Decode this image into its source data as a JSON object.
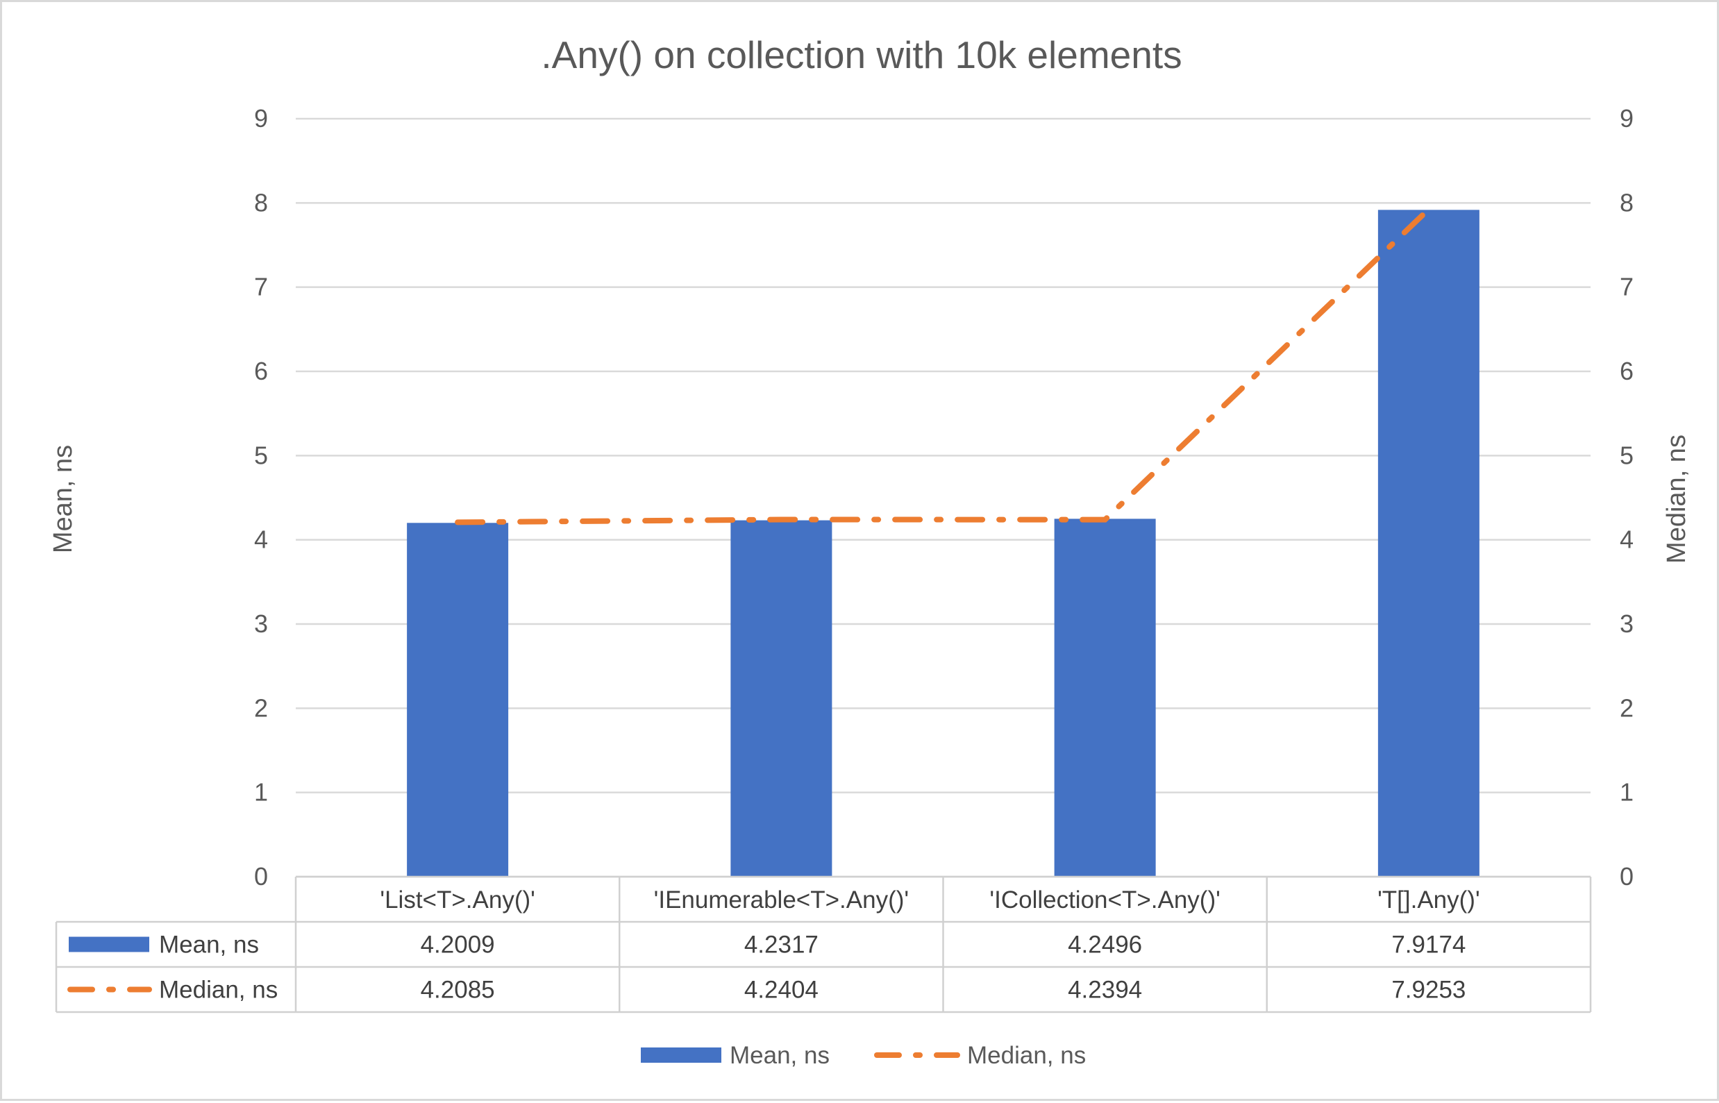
{
  "chart_data": {
    "type": "bar",
    "title": ".Any() on collection with 10k elements",
    "categories": [
      "'List<T>.Any()'",
      "'IEnumerable<T>.Any()'",
      "'ICollection<T>.Any()'",
      "'T[].Any()'"
    ],
    "series": [
      {
        "name": "Mean, ns",
        "type": "bar",
        "axis": "left",
        "color": "#4472c4",
        "values": [
          4.2009,
          4.2317,
          4.2496,
          7.9174
        ],
        "value_labels": [
          "4.2009",
          "4.2317",
          "4.2496",
          "7.9174"
        ]
      },
      {
        "name": "Median, ns",
        "type": "line",
        "line_style": "dash-dot",
        "axis": "right",
        "color": "#ed7d31",
        "values": [
          4.2085,
          4.2404,
          4.2394,
          7.9253
        ],
        "value_labels": [
          "4.2085",
          "4.2404",
          "4.2394",
          "7.9253"
        ]
      }
    ],
    "ylabel": "Mean, ns",
    "y2label": "Median, ns",
    "ylim": [
      0,
      9
    ],
    "y2lim": [
      0,
      9
    ],
    "yticks": [
      "0",
      "1",
      "2",
      "3",
      "4",
      "5",
      "6",
      "7",
      "8",
      "9"
    ],
    "y2ticks": [
      "0",
      "1",
      "2",
      "3",
      "4",
      "5",
      "6",
      "7",
      "8",
      "9"
    ],
    "grid": true,
    "data_table": true,
    "legend_position": "bottom"
  }
}
